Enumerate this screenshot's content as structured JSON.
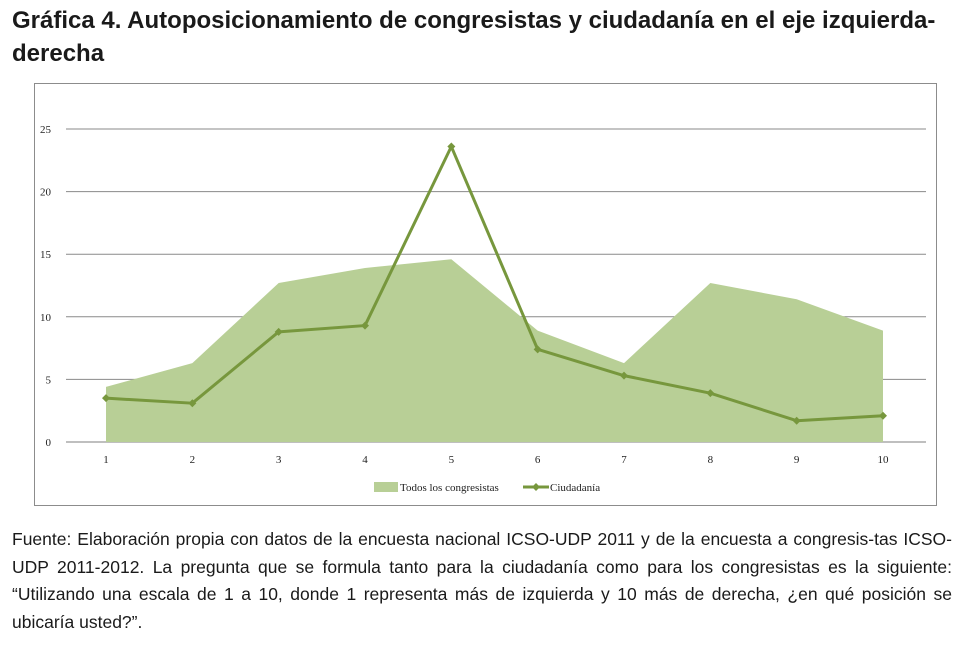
{
  "title": "Gráfica 4. Autoposicionamiento de congresistas y ciudadanía en el eje izquierda-derecha",
  "caption": "Fuente: Elaboración propia con datos de la encuesta nacional ICSO-UDP 2011 y de la encuesta a congresis-tas ICSO-UDP 2011-2012. La pregunta que se formula tanto para la ciudadanía como para los congresistas es la siguiente: “Utilizando una escala de 1 a 10, donde 1 representa más de izquierda  y 10 más de derecha, ¿en qué posición se ubicaría usted?”.",
  "chart_data": {
    "type": "area",
    "categories": [
      "1",
      "2",
      "3",
      "4",
      "5",
      "6",
      "7",
      "8",
      "9",
      "10"
    ],
    "series": [
      {
        "name": "Todos los congresistas",
        "type": "area",
        "color": "#b8cf96",
        "values": [
          4.4,
          6.3,
          12.7,
          13.9,
          14.6,
          8.9,
          6.3,
          12.7,
          11.4,
          8.9
        ]
      },
      {
        "name": "Ciudadanía",
        "type": "line",
        "color": "#77973d",
        "values": [
          3.5,
          3.1,
          8.8,
          9.3,
          23.6,
          7.4,
          5.3,
          3.9,
          1.7,
          2.1
        ]
      }
    ],
    "yticks": [
      0,
      5,
      10,
      15,
      20,
      25
    ],
    "ylim": [
      0,
      25
    ],
    "grid": true,
    "legend_position": "bottom"
  }
}
